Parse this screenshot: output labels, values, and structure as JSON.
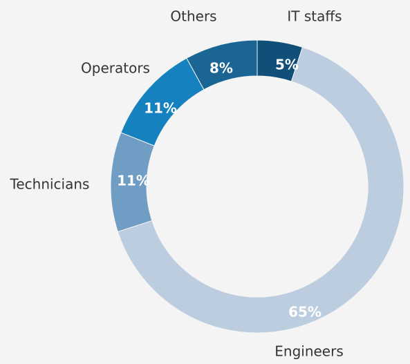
{
  "chart_data": {
    "type": "donut",
    "categories": [
      "IT staffs",
      "Engineers",
      "Technicians",
      "Operators",
      "Others"
    ],
    "values": [
      5,
      65,
      11,
      11,
      8
    ],
    "value_labels": [
      "5%",
      "65%",
      "11%",
      "11%",
      "8%"
    ],
    "colors": [
      "#0f4f78",
      "#bdcde0",
      "#6f9dc4",
      "#1581be",
      "#1a6594"
    ]
  }
}
